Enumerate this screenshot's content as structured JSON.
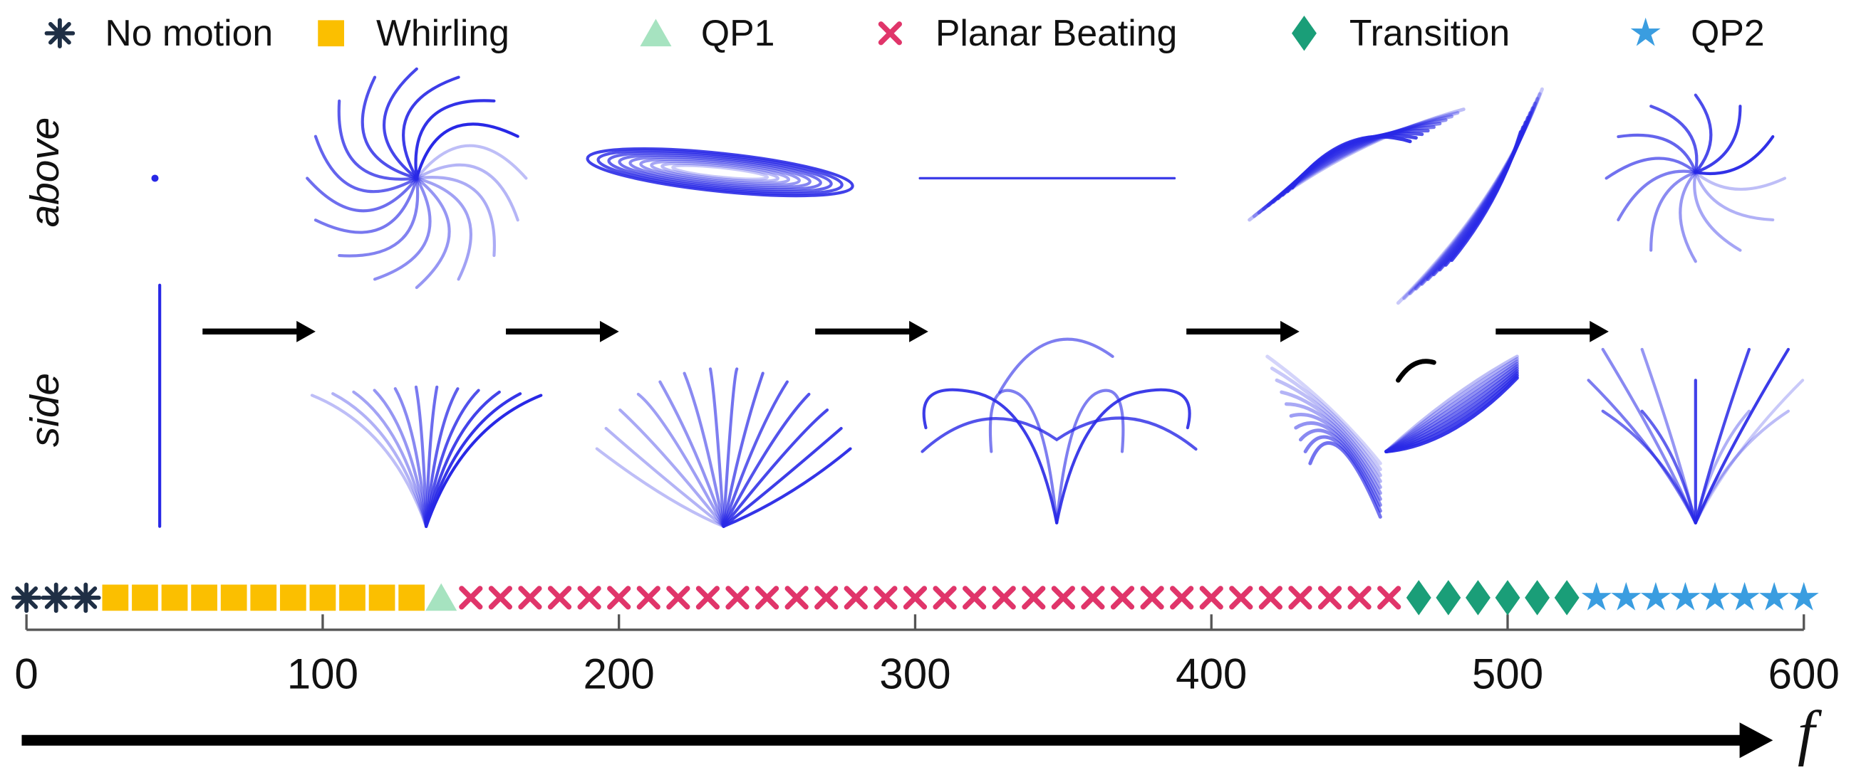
{
  "chart_data": {
    "type": "strip",
    "x_label": "f",
    "row_labels": [
      "above",
      "side"
    ],
    "xlim": [
      0,
      600
    ],
    "xticks": [
      0,
      100,
      200,
      300,
      400,
      500,
      600
    ],
    "series": [
      {
        "name": "No motion",
        "color": "#1f2f45",
        "marker": "asterisk",
        "x": [
          0,
          10,
          20
        ]
      },
      {
        "name": "Whirling",
        "color": "#fbbf00",
        "marker": "square",
        "x": [
          30,
          40,
          50,
          60,
          70,
          80,
          90,
          100,
          110,
          120,
          130
        ]
      },
      {
        "name": "QP1",
        "color": "#a6e3c0",
        "marker": "triangle",
        "x": [
          140
        ]
      },
      {
        "name": "Planar Beating",
        "color": "#e0356a",
        "marker": "cross",
        "x": [
          150,
          160,
          170,
          180,
          190,
          200,
          210,
          220,
          230,
          240,
          250,
          260,
          270,
          280,
          290,
          300,
          310,
          320,
          330,
          340,
          350,
          360,
          370,
          380,
          390,
          400,
          410,
          420,
          430,
          440,
          450,
          460
        ]
      },
      {
        "name": "Transition",
        "color": "#1a9e78",
        "marker": "diamond",
        "x": [
          470,
          480,
          490,
          500,
          510,
          520
        ]
      },
      {
        "name": "QP2",
        "color": "#3a9de0",
        "marker": "star",
        "x": [
          530,
          540,
          550,
          560,
          570,
          580,
          590,
          600
        ]
      }
    ]
  }
}
